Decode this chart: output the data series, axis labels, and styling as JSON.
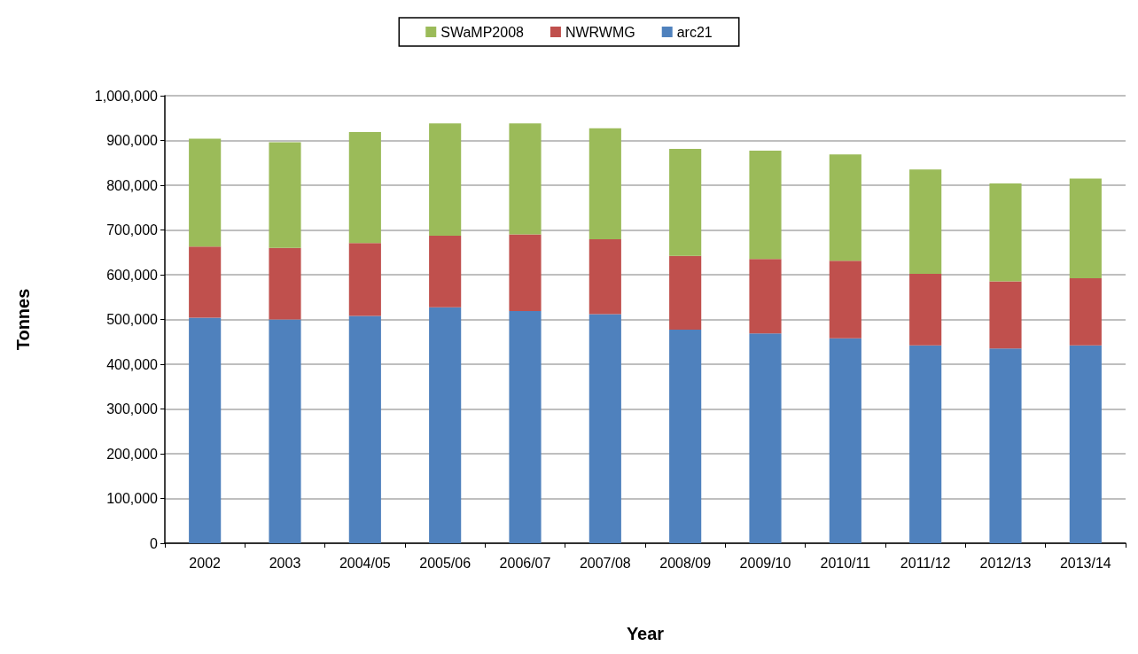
{
  "chart_data": {
    "type": "bar",
    "stacked": true,
    "xlabel": "Year",
    "ylabel": "Tonnes",
    "categories": [
      "2002",
      "2003",
      "2004/05",
      "2005/06",
      "2006/07",
      "2007/08",
      "2008/09",
      "2009/10",
      "2010/11",
      "2011/12",
      "2012/13",
      "2013/14"
    ],
    "series": [
      {
        "name": "arc21",
        "color": "#4f81bd",
        "values": [
          504000,
          500000,
          508000,
          527000,
          519000,
          512000,
          477000,
          469000,
          458000,
          442000,
          435000,
          442000
        ]
      },
      {
        "name": "NWRWMG",
        "color": "#c0504d",
        "values": [
          159000,
          160000,
          163000,
          160000,
          171000,
          167000,
          165000,
          166000,
          173000,
          160000,
          150000,
          150000
        ]
      },
      {
        "name": "SWaMP2008",
        "color": "#9bbb59",
        "values": [
          241000,
          236000,
          248000,
          251000,
          248000,
          248000,
          239000,
          242000,
          238000,
          233000,
          219000,
          223000
        ]
      }
    ],
    "ylim": [
      0,
      1000000
    ],
    "yticks": [
      0,
      {
        "value": 100000,
        "label": "100,000"
      },
      {
        "value": 200000,
        "label": "200,000"
      },
      {
        "value": 300000,
        "label": "300,000"
      },
      {
        "value": 400000,
        "label": "400,000"
      },
      {
        "value": 500000,
        "label": "500,000"
      },
      {
        "value": 600000,
        "label": "600,000"
      },
      {
        "value": 700000,
        "label": "700,000"
      },
      {
        "value": 800000,
        "label": "800,000"
      },
      {
        "value": 900000,
        "label": "900,000"
      },
      {
        "value": 1000000,
        "label": "1,000,000"
      }
    ],
    "grid": "y",
    "legend": "top"
  }
}
